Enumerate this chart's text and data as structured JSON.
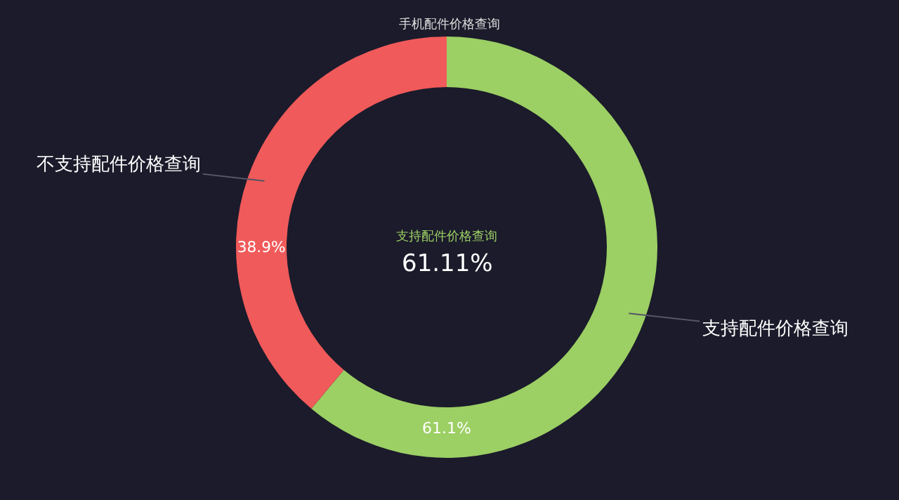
{
  "chart_data": {
    "type": "donut",
    "title": "手机配件价格查询",
    "categories": [
      "支持配件价格查询",
      "不支持配件价格查询"
    ],
    "values": [
      61.1,
      38.9
    ],
    "colors": [
      "#9ccf64",
      "#f05a5a"
    ],
    "value_labels": [
      "61.1%",
      "38.9%"
    ],
    "annotations": [
      "支持配件价格查询",
      "61.11%"
    ],
    "legend": false
  }
}
